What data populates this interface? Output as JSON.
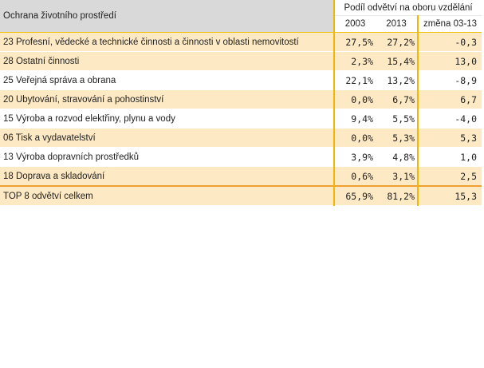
{
  "table": {
    "corner_label": "Ochrana životního prostředí",
    "group_label": "Podíl odvětví na oboru vzdělání",
    "columns": [
      "2003",
      "2013",
      "změna 03-13"
    ],
    "rows": [
      {
        "label": "23 Profesní, vědecké a technické činnosti a činnosti v oblasti nemovitostí",
        "v2003": "27,5%",
        "v2013": "27,2%",
        "delta": "-0,3"
      },
      {
        "label": "28 Ostatní činnosti",
        "v2003": "2,3%",
        "v2013": "15,4%",
        "delta": "13,0"
      },
      {
        "label": "25 Veřejná správa a obrana",
        "v2003": "22,1%",
        "v2013": "13,2%",
        "delta": "-8,9"
      },
      {
        "label": "20 Ubytování, stravování a pohostinství",
        "v2003": "0,0%",
        "v2013": "6,7%",
        "delta": "6,7"
      },
      {
        "label": "15 Výroba a rozvod elektřiny, plynu a vody",
        "v2003": "9,4%",
        "v2013": "5,5%",
        "delta": "-4,0"
      },
      {
        "label": "06 Tisk a vydavatelství",
        "v2003": "0,0%",
        "v2013": "5,3%",
        "delta": "5,3"
      },
      {
        "label": "13 Výroba dopravních prostředků",
        "v2003": "3,9%",
        "v2013": "4,8%",
        "delta": "1,0"
      },
      {
        "label": "18 Doprava a skladování",
        "v2003": "0,6%",
        "v2013": "3,1%",
        "delta": "2,5"
      }
    ],
    "total": {
      "label": "TOP 8 odvětví celkem",
      "v2003": "65,9%",
      "v2013": "81,2%",
      "delta": "15,3"
    }
  },
  "colors": {
    "accent_border": "#f0b800",
    "row_fill": "#fde9c4",
    "header_fill": "#d9d9d9"
  }
}
